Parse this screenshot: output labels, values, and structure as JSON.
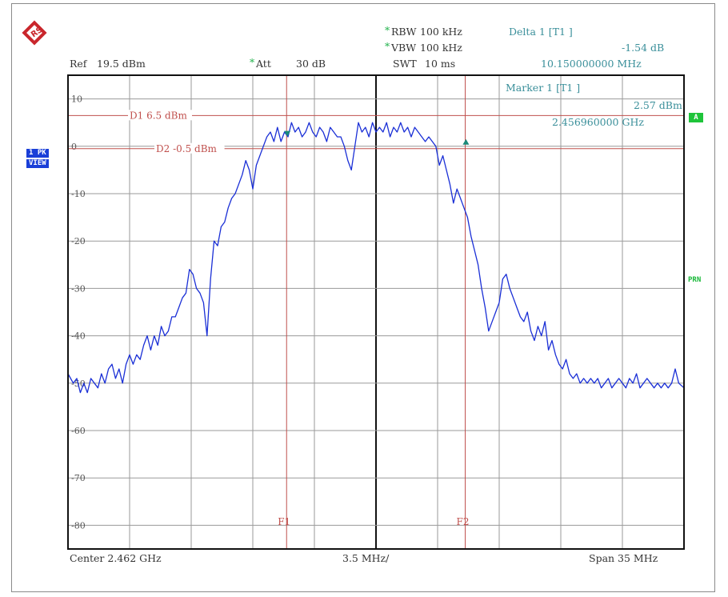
{
  "header": {
    "ref_label": "Ref",
    "ref_value": "19.5 dBm",
    "att_label": "Att",
    "att_value": "30 dB",
    "rbw_label": "RBW",
    "rbw_value": "100 kHz",
    "vbw_label": "VBW",
    "vbw_value": "100 kHz",
    "swt_label": "SWT",
    "swt_value": "10 ms",
    "star": "*"
  },
  "delta_marker": {
    "title": "Delta 1 [T1 ]",
    "level": "-1.54 dB",
    "freq": "10.150000000 MHz"
  },
  "marker": {
    "title": "Marker 1 [T1 ]",
    "level": "2.57 dBm",
    "freq": "2.456960000 GHz"
  },
  "side": {
    "trace_label_1": "1 PK",
    "trace_label_2": "VIEW",
    "trigger_box": "A",
    "prn": "PRN"
  },
  "footer": {
    "center": "Center 2.462 GHz",
    "per_div": "3.5 MHz/",
    "span": "Span 35 MHz"
  },
  "chart_data": {
    "type": "line",
    "title": "",
    "xlabel": "",
    "ylabel": "",
    "x_center_ghz": 2.462,
    "x_span_mhz": 35,
    "xlim_mhz": [
      -17.5,
      17.5
    ],
    "ylim": [
      -85,
      15
    ],
    "y_ticks": [
      10,
      0,
      -10,
      -20,
      -30,
      -40,
      -50,
      -60,
      -70,
      -80
    ],
    "y_tick_labels": [
      "10",
      "0",
      "-10",
      "-20",
      "-30",
      "-40",
      "-50",
      "-60",
      "-70",
      "-80"
    ],
    "grid": true,
    "display_lines": [
      {
        "name": "D1",
        "value": 6.5,
        "label": "D1 6.5 dBm"
      },
      {
        "name": "D2",
        "value": -0.5,
        "label": "D2 -0.5 dBm"
      }
    ],
    "frequency_lines": [
      {
        "name": "F1",
        "x_mhz": -5.08
      },
      {
        "name": "F2",
        "x_mhz": 5.07
      }
    ],
    "markers": [
      {
        "name": "M1",
        "x_mhz": -5.04,
        "y": 2.57
      },
      {
        "name": "D1",
        "x_mhz": 5.11,
        "y": 1.03
      }
    ],
    "series": [
      {
        "x": [
          -17.5,
          -17.2,
          -17.0,
          -16.8,
          -16.6,
          -16.4,
          -16.2,
          -16.0,
          -15.8,
          -15.6,
          -15.4,
          -15.2,
          -15.0,
          -14.8,
          -14.6,
          -14.4,
          -14.2,
          -14.0,
          -13.8,
          -13.6,
          -13.4,
          -13.2,
          -13.0,
          -12.8,
          -12.6,
          -12.4,
          -12.2,
          -12.0,
          -11.8,
          -11.6,
          -11.4,
          -11.2,
          -11.0,
          -10.8,
          -10.6,
          -10.4,
          -10.2,
          -10.0,
          -9.8,
          -9.6,
          -9.4,
          -9.2,
          -9.0,
          -8.8,
          -8.6,
          -8.4,
          -8.2,
          -8.0,
          -7.8,
          -7.6,
          -7.4,
          -7.2,
          -7.0,
          -6.8,
          -6.6,
          -6.4,
          -6.2,
          -6.0,
          -5.8,
          -5.6,
          -5.4,
          -5.2,
          -5.0,
          -4.8,
          -4.6,
          -4.4,
          -4.2,
          -4.0,
          -3.8,
          -3.6,
          -3.4,
          -3.2,
          -3.0,
          -2.8,
          -2.6,
          -2.4,
          -2.2,
          -2.0,
          -1.8,
          -1.6,
          -1.4,
          -1.2,
          -1.0,
          -0.8,
          -0.6,
          -0.4,
          -0.2,
          0.0,
          0.2,
          0.4,
          0.6,
          0.8,
          1.0,
          1.2,
          1.4,
          1.6,
          1.8,
          2.0,
          2.2,
          2.4,
          2.6,
          2.8,
          3.0,
          3.2,
          3.4,
          3.6,
          3.8,
          4.0,
          4.2,
          4.4,
          4.6,
          4.8,
          5.0,
          5.2,
          5.4,
          5.6,
          5.8,
          6.0,
          6.2,
          6.4,
          6.6,
          6.8,
          7.0,
          7.2,
          7.4,
          7.6,
          7.8,
          8.0,
          8.2,
          8.4,
          8.6,
          8.8,
          9.0,
          9.2,
          9.4,
          9.6,
          9.8,
          10.0,
          10.2,
          10.4,
          10.6,
          10.8,
          11.0,
          11.2,
          11.4,
          11.6,
          11.8,
          12.0,
          12.2,
          12.4,
          12.6,
          12.8,
          13.0,
          13.2,
          13.4,
          13.6,
          13.8,
          14.0,
          14.2,
          14.4,
          14.6,
          14.8,
          15.0,
          15.2,
          15.4,
          15.6,
          15.8,
          16.0,
          16.2,
          16.4,
          16.6,
          16.8,
          17.0,
          17.2,
          17.5
        ],
        "y": [
          -48,
          -50,
          -49,
          -52,
          -50,
          -52,
          -49,
          -50,
          -51,
          -48,
          -50,
          -47,
          -46,
          -49,
          -47,
          -50,
          -46,
          -44,
          -46,
          -44,
          -45,
          -42,
          -40,
          -43,
          -40,
          -42,
          -38,
          -40,
          -39,
          -36,
          -36,
          -34,
          -32,
          -31,
          -26,
          -27,
          -30,
          -31,
          -33,
          -40,
          -28,
          -20,
          -21,
          -17,
          -16,
          -13,
          -11,
          -10,
          -8,
          -6,
          -3,
          -5,
          -9,
          -4,
          -2,
          0,
          2,
          3,
          1,
          4,
          1,
          3,
          2,
          5,
          3,
          4,
          2,
          3,
          5,
          3,
          2,
          4,
          3,
          1,
          4,
          3,
          2,
          2,
          0,
          -3,
          -5,
          0,
          5,
          3,
          4,
          2,
          5,
          3,
          4,
          3,
          5,
          2,
          4,
          3,
          5,
          3,
          4,
          2,
          4,
          3,
          2,
          1,
          2,
          1,
          0,
          -4,
          -2,
          -5,
          -8,
          -12,
          -9,
          -11,
          -13,
          -15,
          -19,
          -22,
          -25,
          -30,
          -34,
          -39,
          -37,
          -35,
          -33,
          -28,
          -27,
          -30,
          -32,
          -34,
          -36,
          -37,
          -35,
          -39,
          -41,
          -38,
          -40,
          -37,
          -43,
          -41,
          -44,
          -46,
          -47,
          -45,
          -48,
          -49,
          -48,
          -50,
          -49,
          -50,
          -49,
          -50,
          -49,
          -51,
          -50,
          -49,
          -51,
          -50,
          -49,
          -50,
          -51,
          -49,
          -50,
          -48,
          -51,
          -50,
          -49,
          -50,
          -51,
          -50,
          -51,
          -50,
          -51,
          -50,
          -47,
          -50,
          -51
        ],
        "color": "#1a2fd6"
      }
    ]
  }
}
